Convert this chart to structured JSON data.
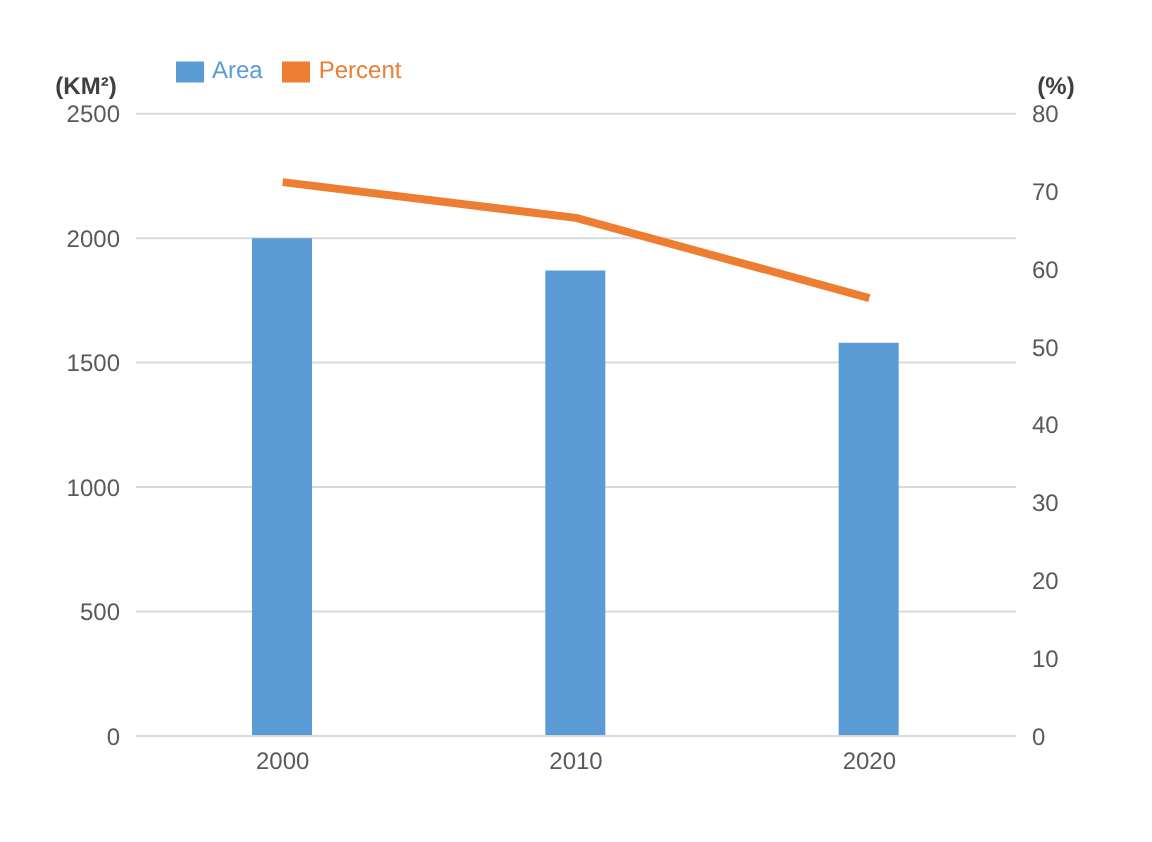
{
  "chart_data": {
    "type": "bar",
    "categories": [
      "2000",
      "2010",
      "2020"
    ],
    "series": [
      {
        "name": "Area",
        "color": "#5b9bd5",
        "values": [
          2000,
          1870,
          1580
        ]
      },
      {
        "name": "Percent",
        "type": "line",
        "axis": "y2",
        "color": "#ed7d31",
        "values": [
          71.2,
          66.6,
          56.3
        ]
      }
    ],
    "ylabel": "(KM²)",
    "y2label": "(%)",
    "ylim": [
      0,
      2500
    ],
    "yticks": [
      0,
      500,
      1000,
      1500,
      2000,
      2500
    ],
    "y2lim": [
      0,
      80
    ],
    "y2ticks": [
      0,
      10,
      20,
      30,
      40,
      50,
      60,
      70,
      80
    ],
    "grid": "y",
    "legend": "top left",
    "marker": "none"
  }
}
